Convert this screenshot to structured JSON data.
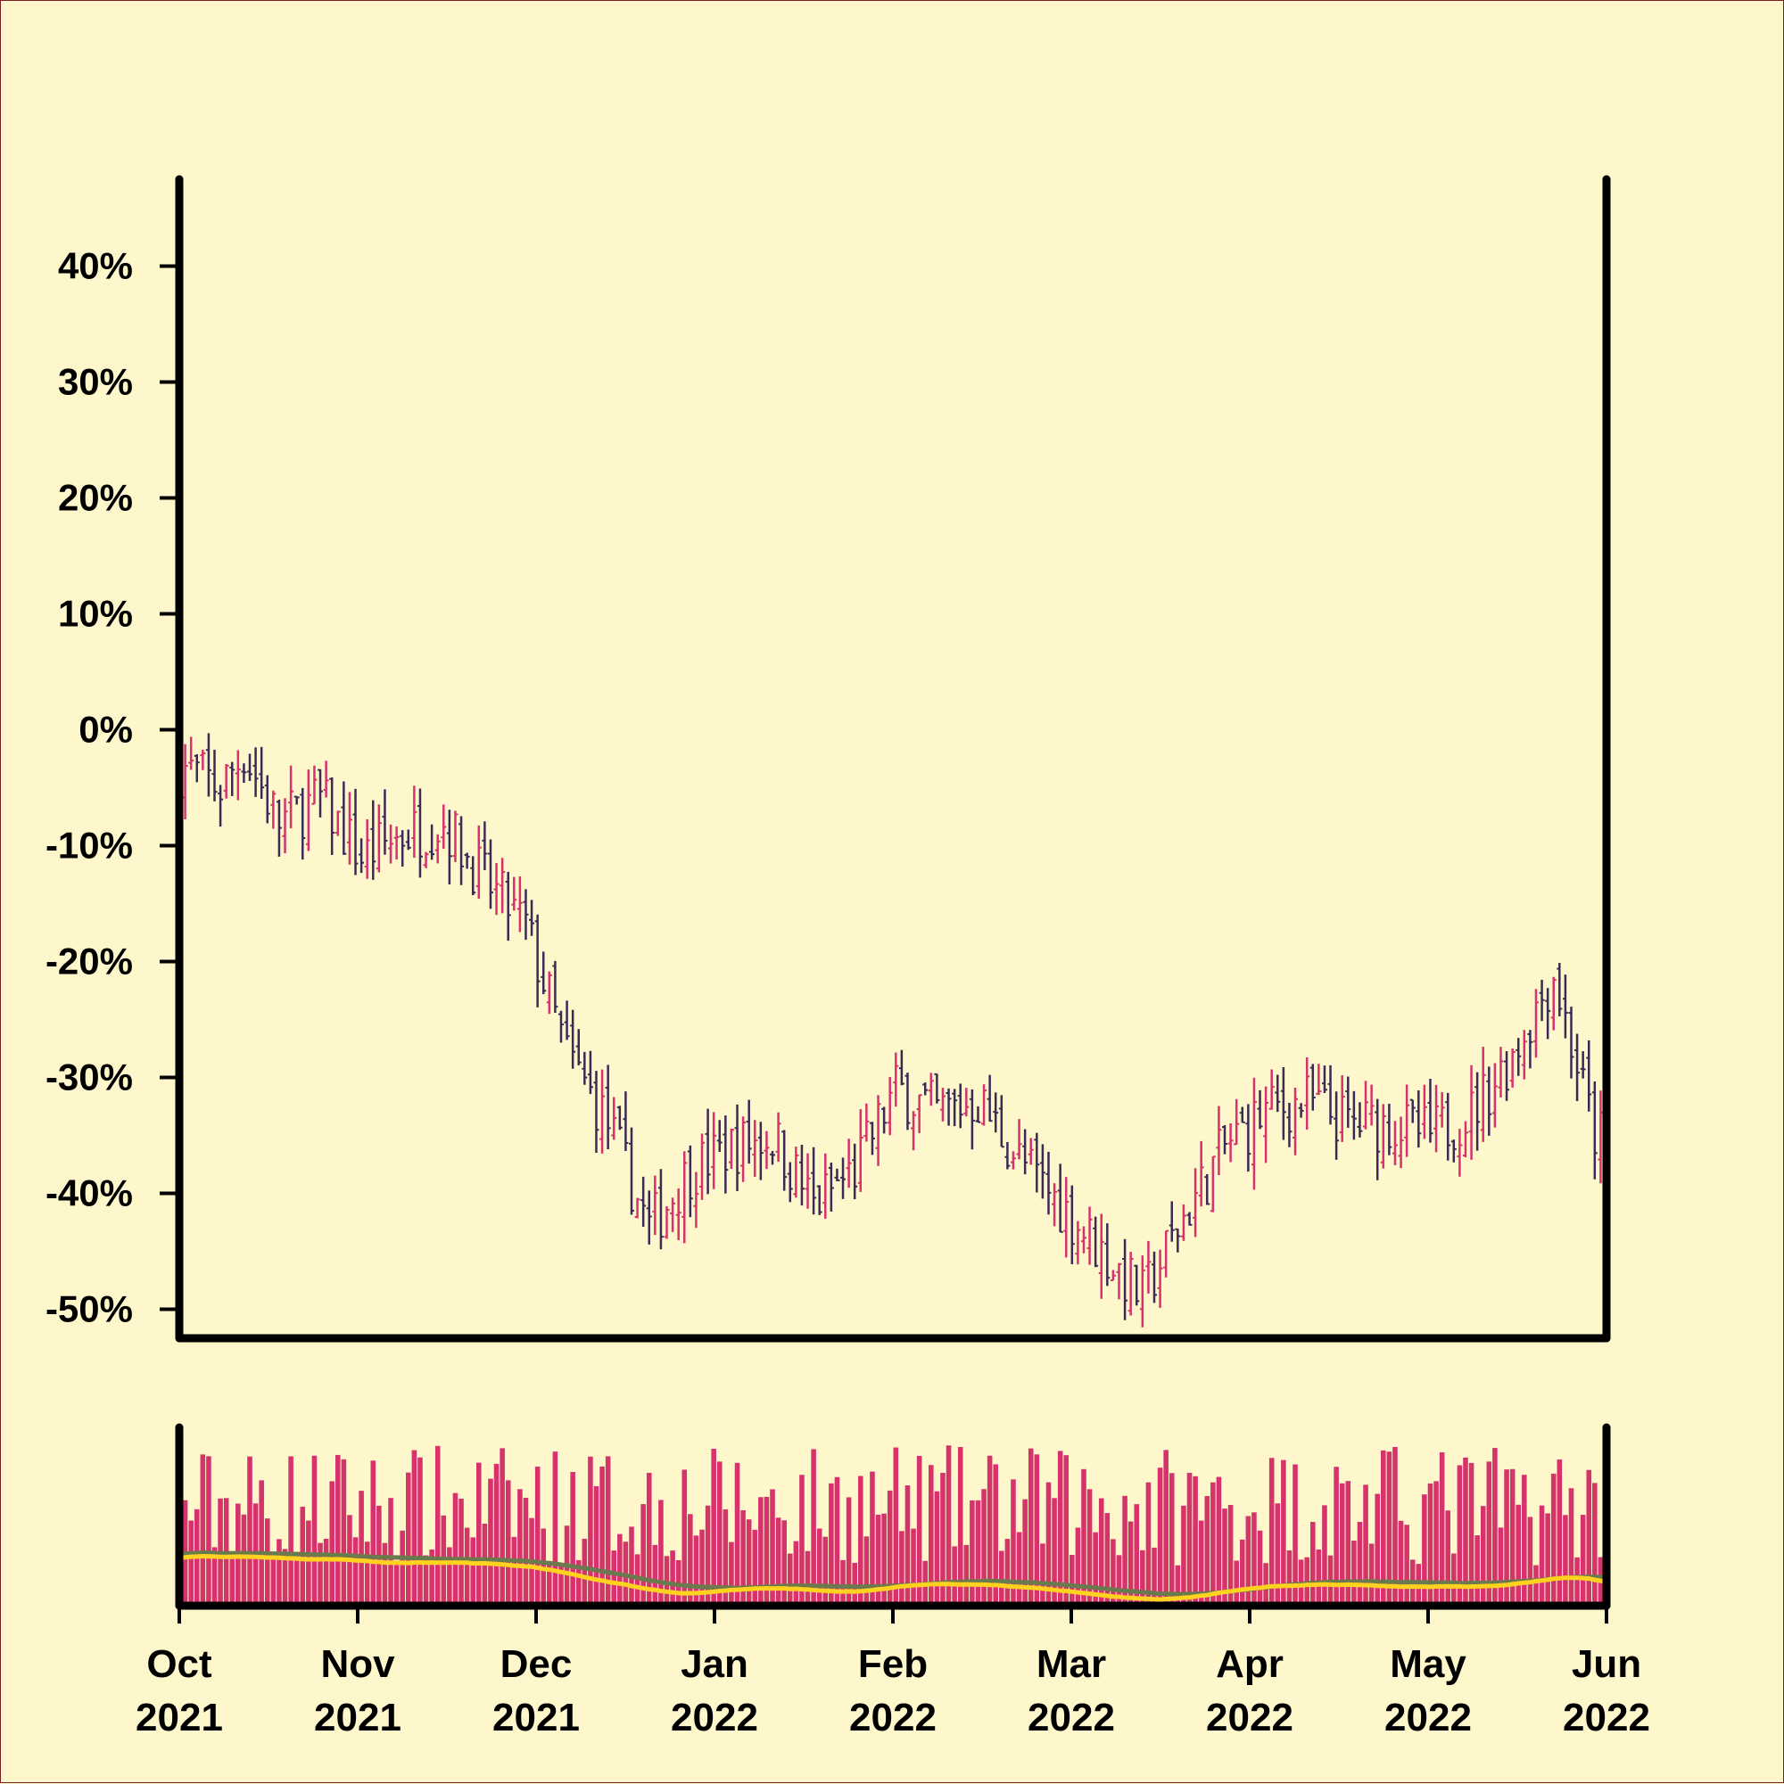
{
  "chart_data": [
    {
      "type": "ohlc",
      "panel": "price",
      "ylabel": "",
      "ylim": [
        -52.5,
        47.5
      ],
      "y_ticks": [
        -50,
        -40,
        -30,
        -20,
        -10,
        0,
        10,
        20,
        30,
        40
      ],
      "y_tick_labels": [
        "-50%",
        "-40%",
        "-30%",
        "-20%",
        "-10%",
        "0%",
        "10%",
        "20%",
        "30%",
        "40%"
      ],
      "x_start": "2021-10-01",
      "x_end": "2022-06-01",
      "up_color": "#d6336c",
      "down_color": "#3b2a55",
      "series_close_path": [
        {
          "date": "2021-10-01",
          "close": -3
        },
        {
          "date": "2021-10-08",
          "close": -5
        },
        {
          "date": "2021-10-12",
          "close": -2
        },
        {
          "date": "2021-10-18",
          "close": -8
        },
        {
          "date": "2021-10-25",
          "close": -6
        },
        {
          "date": "2021-11-01",
          "close": -11
        },
        {
          "date": "2021-11-08",
          "close": -9
        },
        {
          "date": "2021-11-15",
          "close": -8
        },
        {
          "date": "2021-11-22",
          "close": -13
        },
        {
          "date": "2021-11-29",
          "close": -17
        },
        {
          "date": "2021-12-06",
          "close": -28
        },
        {
          "date": "2021-12-13",
          "close": -34
        },
        {
          "date": "2021-12-20",
          "close": -43
        },
        {
          "date": "2021-12-27",
          "close": -38
        },
        {
          "date": "2022-01-03",
          "close": -36
        },
        {
          "date": "2022-01-10",
          "close": -35
        },
        {
          "date": "2022-01-17",
          "close": -41
        },
        {
          "date": "2022-01-24",
          "close": -38
        },
        {
          "date": "2022-01-31",
          "close": -31
        },
        {
          "date": "2022-02-07",
          "close": -33
        },
        {
          "date": "2022-02-14",
          "close": -32
        },
        {
          "date": "2022-02-21",
          "close": -37
        },
        {
          "date": "2022-02-28",
          "close": -41
        },
        {
          "date": "2022-03-07",
          "close": -45
        },
        {
          "date": "2022-03-14",
          "close": -49
        },
        {
          "date": "2022-03-21",
          "close": -42
        },
        {
          "date": "2022-03-28",
          "close": -36
        },
        {
          "date": "2022-04-04",
          "close": -33
        },
        {
          "date": "2022-04-11",
          "close": -32
        },
        {
          "date": "2022-04-18",
          "close": -34
        },
        {
          "date": "2022-04-25",
          "close": -34
        },
        {
          "date": "2022-05-02",
          "close": -35
        },
        {
          "date": "2022-05-09",
          "close": -33
        },
        {
          "date": "2022-05-16",
          "close": -28
        },
        {
          "date": "2022-05-23",
          "close": -21
        },
        {
          "date": "2022-05-30",
          "close": -35
        }
      ]
    },
    {
      "type": "bar",
      "panel": "volume",
      "bar_color": "#d6336c",
      "moving_averages": [
        {
          "color": "#6b7a4e"
        },
        {
          "color": "#ffd21f"
        }
      ]
    }
  ],
  "x_axis": {
    "ticks": [
      {
        "month": "Oct",
        "year": "2021"
      },
      {
        "month": "Nov",
        "year": "2021"
      },
      {
        "month": "Dec",
        "year": "2021"
      },
      {
        "month": "Jan",
        "year": "2022"
      },
      {
        "month": "Feb",
        "year": "2022"
      },
      {
        "month": "Mar",
        "year": "2022"
      },
      {
        "month": "Apr",
        "year": "2022"
      },
      {
        "month": "May",
        "year": "2022"
      },
      {
        "month": "Jun",
        "year": "2022"
      }
    ]
  }
}
